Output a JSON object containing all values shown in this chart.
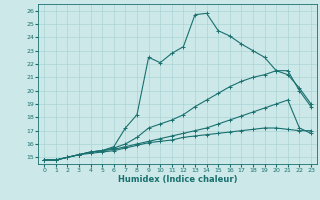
{
  "xlabel": "Humidex (Indice chaleur)",
  "background_color": "#cce8e8",
  "line_color": "#1a7070",
  "grid_color": "#aad4d4",
  "xlim": [
    -0.5,
    23.5
  ],
  "ylim": [
    14.5,
    26.5
  ],
  "yticks": [
    15,
    16,
    17,
    18,
    19,
    20,
    21,
    22,
    23,
    24,
    25,
    26
  ],
  "xticks": [
    0,
    1,
    2,
    3,
    4,
    5,
    6,
    7,
    8,
    9,
    10,
    11,
    12,
    13,
    14,
    15,
    16,
    17,
    18,
    19,
    20,
    21,
    22,
    23
  ],
  "lines": [
    {
      "x": [
        0,
        1,
        2,
        3,
        4,
        5,
        6,
        7,
        8,
        9,
        10,
        11,
        12,
        13,
        14,
        15,
        16,
        17,
        18,
        19,
        20,
        21,
        22,
        23
      ],
      "y": [
        14.8,
        14.8,
        15.0,
        15.2,
        15.4,
        15.5,
        15.8,
        17.2,
        18.2,
        22.5,
        22.1,
        22.8,
        23.3,
        25.7,
        25.8,
        24.5,
        24.1,
        23.5,
        23.0,
        22.5,
        21.5,
        21.5,
        20.0,
        18.8
      ]
    },
    {
      "x": [
        0,
        1,
        2,
        3,
        4,
        5,
        6,
        7,
        8,
        9,
        10,
        11,
        12,
        13,
        14,
        15,
        16,
        17,
        18,
        19,
        20,
        21,
        22,
        23
      ],
      "y": [
        14.8,
        14.8,
        15.0,
        15.2,
        15.4,
        15.5,
        15.7,
        16.0,
        16.5,
        17.2,
        17.5,
        17.8,
        18.2,
        18.8,
        19.3,
        19.8,
        20.3,
        20.7,
        21.0,
        21.2,
        21.5,
        21.2,
        20.2,
        19.0
      ]
    },
    {
      "x": [
        0,
        1,
        2,
        3,
        4,
        5,
        6,
        7,
        8,
        9,
        10,
        11,
        12,
        13,
        14,
        15,
        16,
        17,
        18,
        19,
        20,
        21,
        22,
        23
      ],
      "y": [
        14.8,
        14.8,
        15.0,
        15.2,
        15.3,
        15.4,
        15.5,
        15.7,
        15.9,
        16.1,
        16.2,
        16.3,
        16.5,
        16.6,
        16.7,
        16.8,
        16.9,
        17.0,
        17.1,
        17.2,
        17.2,
        17.1,
        17.0,
        17.0
      ]
    },
    {
      "x": [
        0,
        1,
        2,
        3,
        4,
        5,
        6,
        7,
        8,
        9,
        10,
        11,
        12,
        13,
        14,
        15,
        16,
        17,
        18,
        19,
        20,
        21,
        22,
        23
      ],
      "y": [
        14.8,
        14.8,
        15.0,
        15.2,
        15.4,
        15.5,
        15.6,
        15.8,
        16.0,
        16.2,
        16.4,
        16.6,
        16.8,
        17.0,
        17.2,
        17.5,
        17.8,
        18.1,
        18.4,
        18.7,
        19.0,
        19.3,
        17.2,
        16.8
      ]
    }
  ]
}
